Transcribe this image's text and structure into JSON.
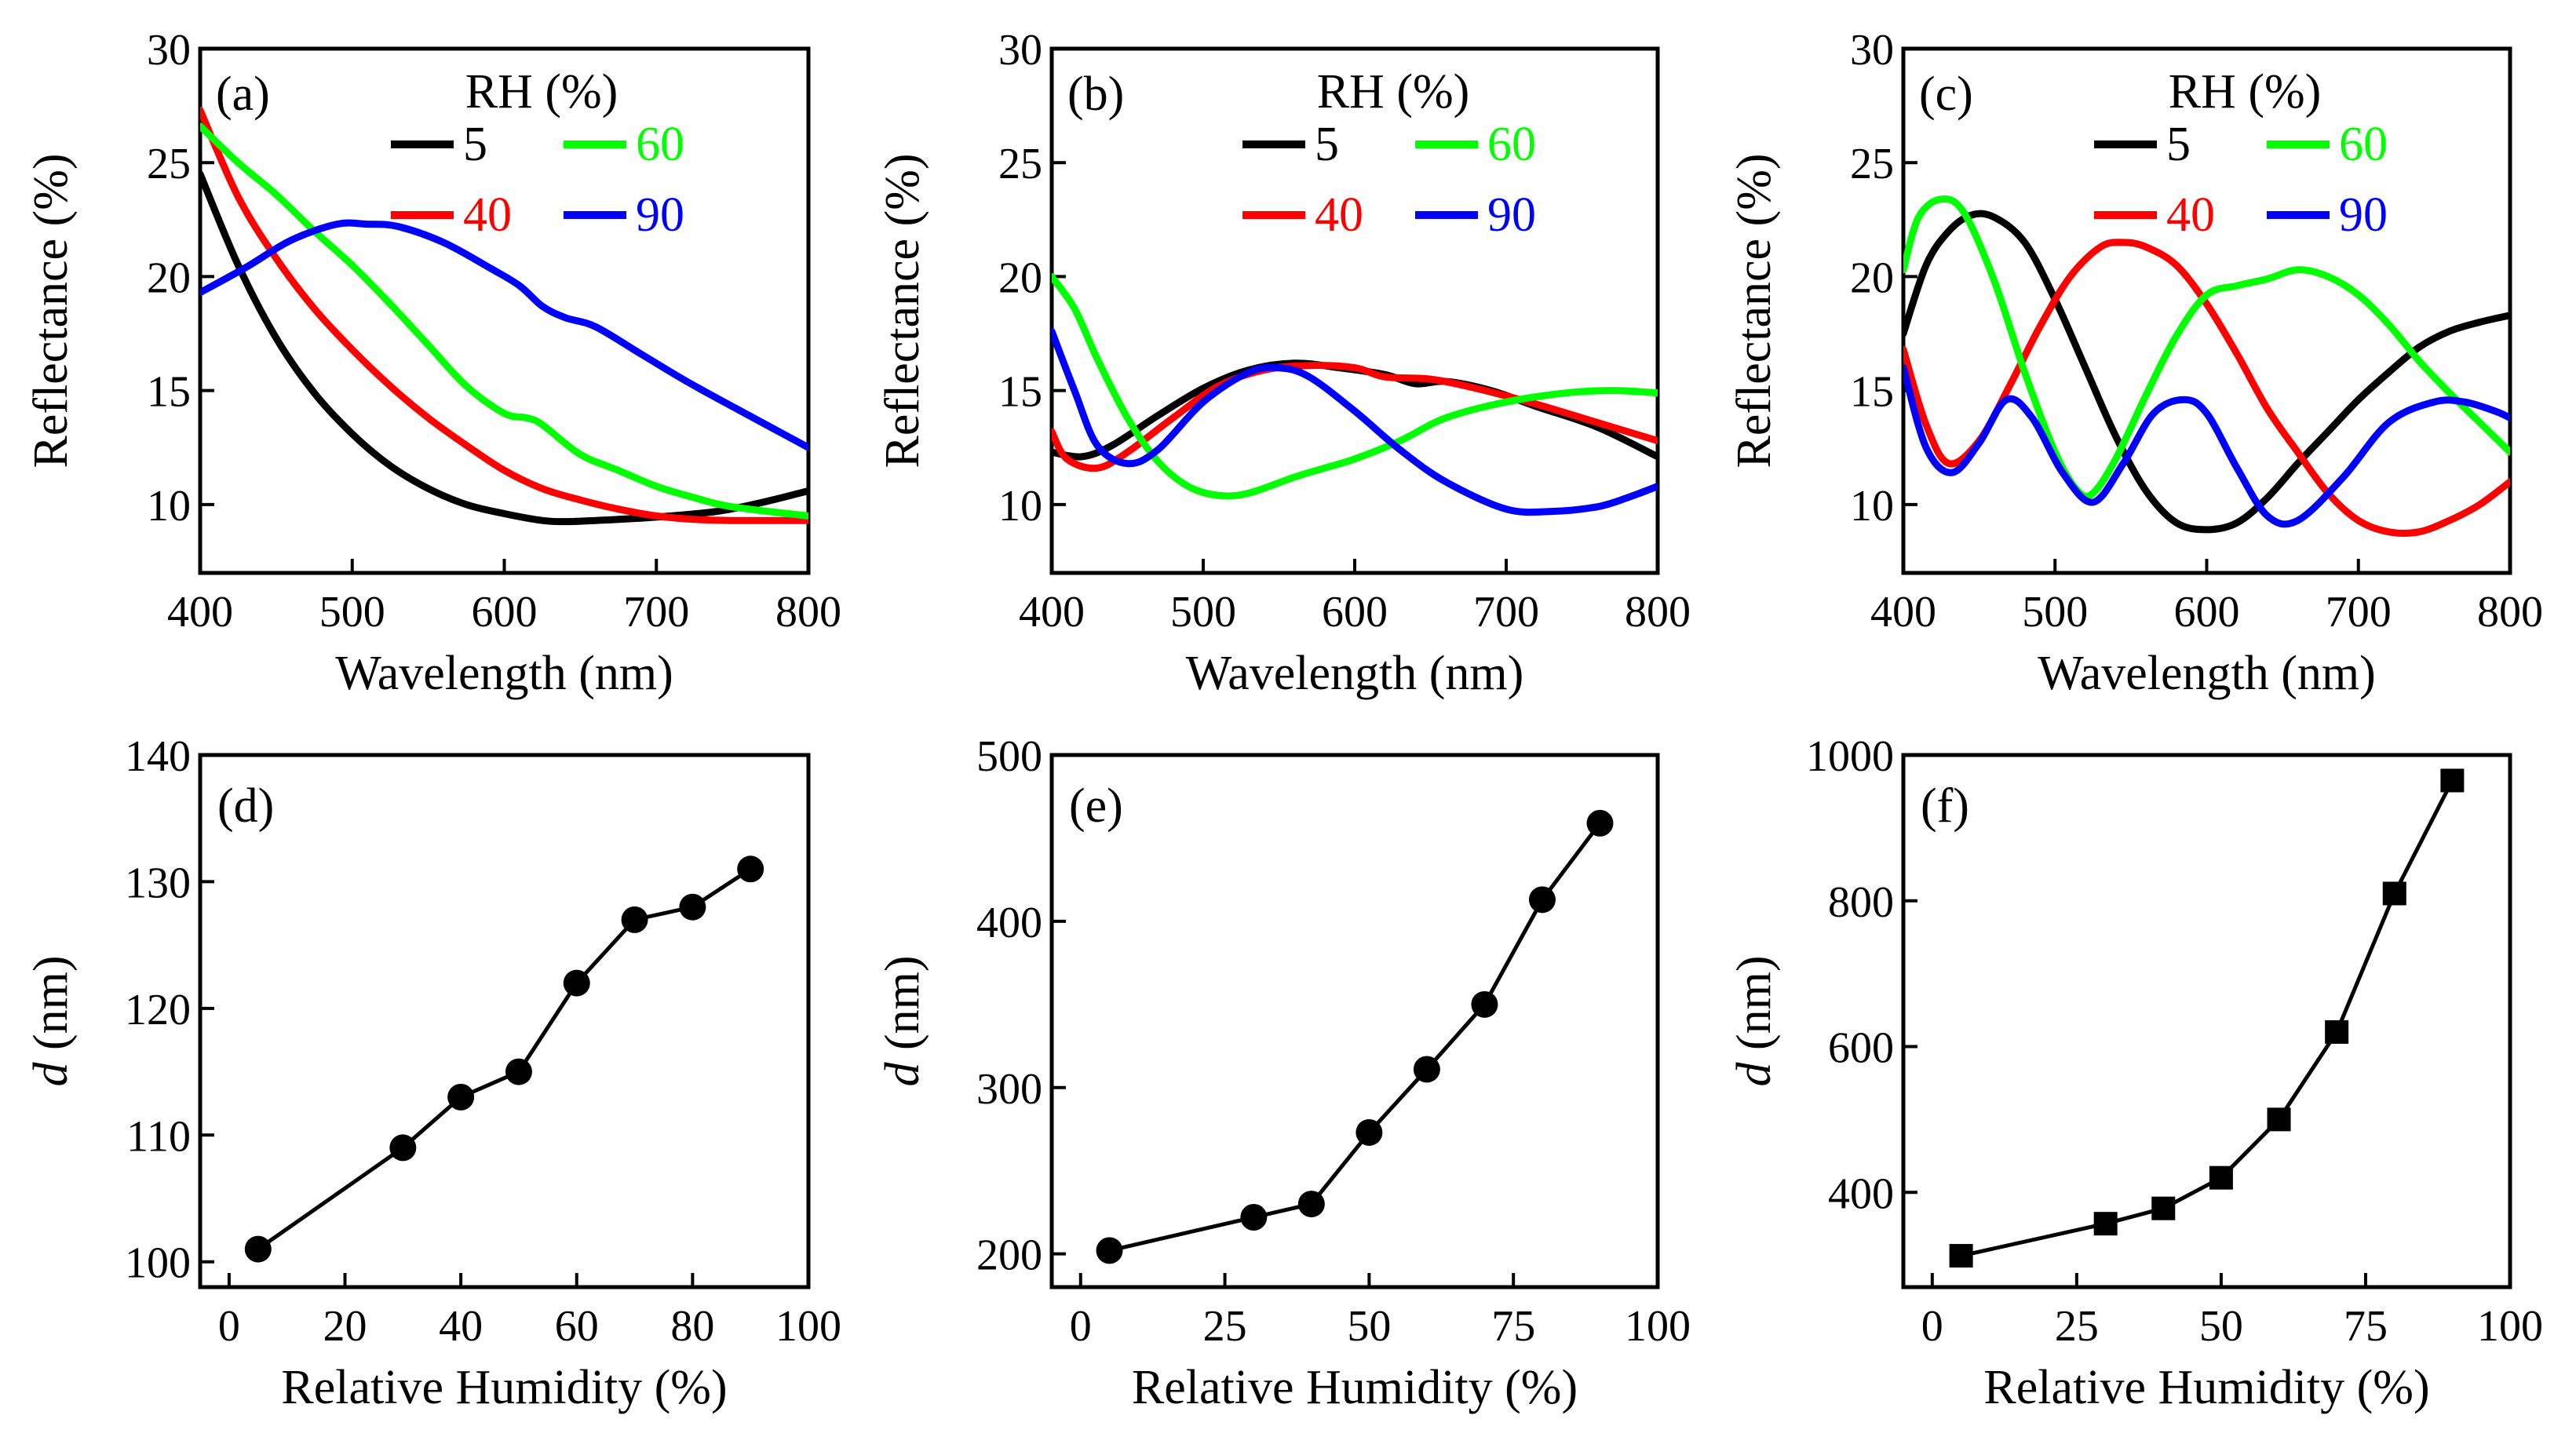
{
  "chart_data": [
    {
      "panel": "(a)",
      "type": "line",
      "xlabel": "Wavelength (nm)",
      "ylabel": "Reflectance (%)",
      "xlim": [
        400,
        800
      ],
      "ylim": [
        7,
        30
      ],
      "xticks": [
        400,
        500,
        600,
        700,
        800
      ],
      "yticks": [
        10,
        15,
        20,
        25,
        30
      ],
      "legend_title": "RH (%)",
      "series": [
        {
          "name": "5",
          "color": "#000000",
          "x": [
            400,
            425,
            450,
            475,
            500,
            525,
            550,
            575,
            600,
            625,
            640,
            660,
            700,
            740,
            770,
            800
          ],
          "y": [
            24.5,
            20.5,
            17.3,
            14.9,
            13.1,
            11.7,
            10.7,
            10.0,
            9.6,
            9.3,
            9.25,
            9.3,
            9.45,
            9.7,
            10.1,
            10.6
          ]
        },
        {
          "name": "40",
          "color": "#ff0000",
          "x": [
            400,
            425,
            450,
            475,
            500,
            525,
            550,
            575,
            600,
            625,
            650,
            675,
            700,
            725,
            750,
            800
          ],
          "y": [
            27.3,
            23.5,
            20.8,
            18.6,
            16.8,
            15.2,
            13.8,
            12.6,
            11.5,
            10.7,
            10.2,
            9.8,
            9.5,
            9.35,
            9.3,
            9.3
          ]
        },
        {
          "name": "60",
          "color": "#00ff00",
          "x": [
            400,
            425,
            450,
            475,
            500,
            525,
            550,
            575,
            600,
            615,
            625,
            650,
            675,
            700,
            725,
            750,
            800
          ],
          "y": [
            26.6,
            25.0,
            23.6,
            22.0,
            20.5,
            18.8,
            17.0,
            15.2,
            14.0,
            13.8,
            13.5,
            12.2,
            11.5,
            10.8,
            10.3,
            9.9,
            9.5
          ]
        },
        {
          "name": "90",
          "color": "#0000ff",
          "x": [
            400,
            430,
            460,
            490,
            510,
            530,
            560,
            590,
            610,
            625,
            640,
            660,
            690,
            720,
            750,
            775,
            800
          ],
          "y": [
            19.3,
            20.4,
            21.6,
            22.3,
            22.3,
            22.2,
            21.5,
            20.4,
            19.6,
            18.7,
            18.2,
            17.8,
            16.6,
            15.4,
            14.3,
            13.4,
            12.5
          ]
        }
      ]
    },
    {
      "panel": "(b)",
      "type": "line",
      "xlabel": "Wavelength (nm)",
      "ylabel": "Reflectance (%)",
      "xlim": [
        400,
        800
      ],
      "ylim": [
        7,
        30
      ],
      "xticks": [
        400,
        500,
        600,
        700,
        800
      ],
      "yticks": [
        10,
        15,
        20,
        25,
        30
      ],
      "legend_title": "RH (%)",
      "series": [
        {
          "name": "5",
          "color": "#000000",
          "x": [
            400,
            420,
            440,
            470,
            500,
            530,
            560,
            590,
            620,
            640,
            660,
            690,
            720,
            760,
            800
          ],
          "y": [
            12.3,
            12.1,
            12.6,
            13.9,
            15.1,
            15.9,
            16.2,
            16.0,
            15.7,
            15.3,
            15.4,
            15.0,
            14.3,
            13.4,
            12.1
          ]
        },
        {
          "name": "40",
          "color": "#ff0000",
          "x": [
            400,
            410,
            430,
            450,
            480,
            510,
            540,
            570,
            600,
            620,
            650,
            680,
            720,
            760,
            800
          ],
          "y": [
            13.2,
            12.0,
            11.6,
            12.3,
            13.8,
            15.2,
            15.9,
            16.1,
            16.0,
            15.6,
            15.5,
            15.1,
            14.4,
            13.6,
            12.8
          ]
        },
        {
          "name": "60",
          "color": "#00ff00",
          "x": [
            400,
            415,
            430,
            450,
            470,
            490,
            510,
            530,
            560,
            580,
            600,
            630,
            660,
            700,
            740,
            770,
            800
          ],
          "y": [
            20.0,
            18.6,
            16.4,
            13.8,
            11.9,
            10.8,
            10.4,
            10.5,
            11.2,
            11.6,
            12.0,
            12.8,
            13.8,
            14.5,
            14.9,
            15.0,
            14.9
          ]
        },
        {
          "name": "90",
          "color": "#0000ff",
          "x": [
            400,
            415,
            430,
            450,
            470,
            500,
            530,
            550,
            570,
            600,
            630,
            660,
            700,
            730,
            760,
            780,
            800
          ],
          "y": [
            17.6,
            15.0,
            12.6,
            11.8,
            12.4,
            14.5,
            15.8,
            16.0,
            15.6,
            14.1,
            12.4,
            11.0,
            9.8,
            9.7,
            9.9,
            10.3,
            10.8
          ]
        }
      ]
    },
    {
      "panel": "(c)",
      "type": "line",
      "xlabel": "Wavelength (nm)",
      "ylabel": "Reflectance (%)",
      "xlim": [
        400,
        800
      ],
      "ylim": [
        7,
        30
      ],
      "xticks": [
        400,
        500,
        600,
        700,
        800
      ],
      "yticks": [
        10,
        15,
        20,
        25,
        30
      ],
      "legend_title": "RH (%)",
      "series": [
        {
          "name": "5",
          "color": "#000000",
          "x": [
            400,
            415,
            430,
            445,
            460,
            480,
            500,
            520,
            540,
            560,
            580,
            600,
            620,
            640,
            660,
            680,
            700,
            720,
            740,
            760,
            780,
            800
          ],
          "y": [
            17.5,
            20.5,
            22.0,
            22.7,
            22.6,
            21.5,
            19.0,
            16.0,
            13.0,
            10.6,
            9.2,
            8.9,
            9.2,
            10.3,
            11.8,
            13.2,
            14.6,
            15.8,
            16.9,
            17.6,
            18.0,
            18.3
          ]
        },
        {
          "name": "40",
          "color": "#ff0000",
          "x": [
            400,
            415,
            430,
            450,
            470,
            490,
            510,
            530,
            545,
            560,
            580,
            600,
            620,
            640,
            660,
            680,
            700,
            720,
            740,
            760,
            780,
            800
          ],
          "y": [
            16.8,
            13.5,
            11.8,
            12.8,
            15.2,
            17.8,
            20.0,
            21.3,
            21.5,
            21.3,
            20.5,
            18.8,
            16.6,
            14.2,
            12.3,
            10.5,
            9.3,
            8.8,
            8.8,
            9.3,
            10.0,
            11.0
          ]
        },
        {
          "name": "60",
          "color": "#00ff00",
          "x": [
            400,
            410,
            425,
            440,
            460,
            480,
            500,
            515,
            525,
            540,
            560,
            580,
            600,
            620,
            640,
            660,
            680,
            700,
            720,
            740,
            760,
            780,
            800
          ],
          "y": [
            20.3,
            22.6,
            23.4,
            22.8,
            19.8,
            15.8,
            12.3,
            10.6,
            10.5,
            12.0,
            14.8,
            17.4,
            19.2,
            19.6,
            19.9,
            20.3,
            20.0,
            19.2,
            17.9,
            16.3,
            14.9,
            13.6,
            12.3
          ]
        },
        {
          "name": "90",
          "color": "#0000ff",
          "x": [
            400,
            415,
            432,
            450,
            468,
            485,
            505,
            525,
            545,
            565,
            585,
            600,
            620,
            640,
            660,
            690,
            720,
            750,
            770,
            790,
            800
          ],
          "y": [
            16.0,
            12.5,
            11.4,
            12.7,
            14.6,
            13.8,
            11.4,
            10.1,
            11.8,
            14.0,
            14.6,
            14.0,
            11.6,
            9.5,
            9.3,
            11.2,
            13.6,
            14.5,
            14.5,
            14.1,
            13.8
          ]
        }
      ]
    },
    {
      "panel": "(d)",
      "type": "line",
      "xlabel": "Relative Humidity (%)",
      "ylabel_italic": "d",
      "ylabel_rest": " (nm)",
      "xlim": [
        -5,
        100
      ],
      "ylim": [
        98,
        140
      ],
      "xticks": [
        0,
        20,
        40,
        60,
        80,
        100
      ],
      "yticks": [
        100,
        110,
        120,
        130,
        140
      ],
      "marker": "circle",
      "x": [
        5,
        30,
        40,
        50,
        60,
        70,
        80,
        90
      ],
      "y": [
        101,
        109,
        113,
        115,
        122,
        127,
        128,
        131
      ]
    },
    {
      "panel": "(e)",
      "type": "line",
      "xlabel": "Relative Humidity (%)",
      "ylabel_italic": "d",
      "ylabel_rest": " (nm)",
      "xlim": [
        -5,
        100
      ],
      "ylim": [
        180,
        500
      ],
      "xticks": [
        0,
        25,
        50,
        75,
        100
      ],
      "yticks": [
        200,
        300,
        400,
        500
      ],
      "marker": "circle",
      "x": [
        5,
        30,
        40,
        50,
        60,
        70,
        80,
        90
      ],
      "y": [
        202,
        222,
        230,
        273,
        311,
        350,
        413,
        459
      ]
    },
    {
      "panel": "(f)",
      "type": "line",
      "xlabel": "Relative Humidity (%)",
      "ylabel_italic": "d",
      "ylabel_rest": " (nm)",
      "xlim": [
        -5,
        100
      ],
      "ylim": [
        270,
        1000
      ],
      "xticks": [
        0,
        25,
        50,
        75,
        100
      ],
      "yticks": [
        400,
        600,
        800,
        1000
      ],
      "marker": "square",
      "x": [
        5,
        30,
        40,
        50,
        60,
        70,
        80,
        90
      ],
      "y": [
        313,
        357,
        378,
        420,
        500,
        620,
        810,
        965
      ]
    }
  ]
}
